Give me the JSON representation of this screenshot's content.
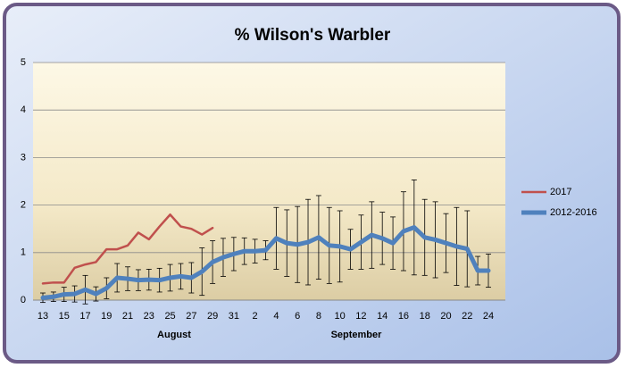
{
  "chart_data": {
    "type": "line",
    "title": "% Wilson's Warbler",
    "categories": [
      "13",
      null,
      "15",
      null,
      "17",
      null,
      "19",
      null,
      "21",
      null,
      "23",
      null,
      "25",
      null,
      "27",
      null,
      "29",
      null,
      "31",
      null,
      "2",
      null,
      "4",
      null,
      "6",
      null,
      "8",
      null,
      "10",
      null,
      "12",
      null,
      "14",
      null,
      "16",
      null,
      "18",
      null,
      "20",
      null,
      "22",
      null,
      "24"
    ],
    "annotations": [
      "August",
      "September"
    ],
    "series": [
      {
        "name": "2017",
        "color": "#c0504d",
        "values": [
          0.35,
          0.37,
          0.37,
          0.68,
          0.75,
          0.8,
          1.07,
          1.07,
          1.15,
          1.42,
          1.28,
          1.55,
          1.8,
          1.55,
          1.5,
          1.38,
          1.52,
          null,
          null,
          null,
          null,
          null,
          null,
          null,
          null,
          null,
          null,
          null,
          null,
          null,
          null,
          null,
          null,
          null,
          null,
          null,
          null,
          null,
          null,
          null,
          null,
          null,
          null
        ]
      },
      {
        "name": "2012-2016",
        "color": "#4f81bd",
        "values": [
          0.05,
          0.07,
          0.12,
          0.13,
          0.22,
          0.13,
          0.25,
          0.47,
          0.45,
          0.42,
          0.43,
          0.42,
          0.47,
          0.5,
          0.47,
          0.6,
          0.8,
          0.9,
          0.97,
          1.03,
          1.03,
          1.05,
          1.3,
          1.2,
          1.17,
          1.22,
          1.32,
          1.15,
          1.13,
          1.07,
          1.22,
          1.37,
          1.3,
          1.2,
          1.45,
          1.53,
          1.32,
          1.27,
          1.2,
          1.13,
          1.08,
          0.62,
          0.62
        ],
        "errors": [
          0.1,
          0.1,
          0.15,
          0.17,
          0.3,
          0.15,
          0.22,
          0.3,
          0.25,
          0.22,
          0.22,
          0.25,
          0.28,
          0.27,
          0.32,
          0.5,
          0.45,
          0.4,
          0.35,
          0.28,
          0.25,
          0.2,
          0.65,
          0.7,
          0.8,
          0.9,
          0.88,
          0.8,
          0.75,
          0.42,
          0.57,
          0.7,
          0.55,
          0.55,
          0.83,
          1.0,
          0.8,
          0.8,
          0.62,
          0.82,
          0.8,
          0.3,
          0.35
        ]
      }
    ],
    "ylim": [
      0,
      5
    ],
    "yticks": [
      0,
      1,
      2,
      3,
      4,
      5
    ],
    "grid": true
  }
}
